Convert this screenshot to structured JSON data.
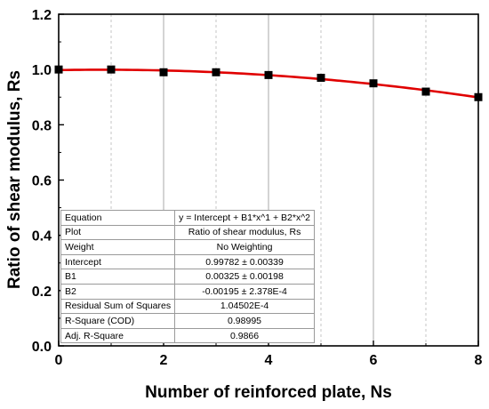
{
  "chart_data": {
    "type": "scatter",
    "title": "",
    "xlabel": "Number of reinforced plate, Ns",
    "ylabel": "Ratio of shear modulus, Rs",
    "xlim": [
      0,
      8
    ],
    "ylim": [
      0,
      1.2
    ],
    "x_ticks": [
      "0",
      "2",
      "4",
      "6",
      "8"
    ],
    "y_ticks": [
      "0.0",
      "0.2",
      "0.4",
      "0.6",
      "0.8",
      "1.0",
      "1.2"
    ],
    "grid": "vertical",
    "series": [
      {
        "x": [
          0,
          1,
          2,
          3,
          4,
          5,
          6,
          7,
          8
        ],
        "y": [
          1.0,
          1.0,
          0.99,
          0.99,
          0.98,
          0.97,
          0.95,
          0.92,
          0.9
        ],
        "marker": "square",
        "color": "#000000"
      }
    ],
    "fit": {
      "type": "polynomial",
      "color": "#e00000",
      "coefficients": [
        0.99782,
        0.00325,
        -0.00195
      ]
    },
    "fit_table": {
      "rows": [
        {
          "label": "Equation",
          "value": "y = Intercept + B1*x^1 + B2*x^2"
        },
        {
          "label": "Plot",
          "value": "Ratio of shear modulus, Rs"
        },
        {
          "label": "Weight",
          "value": "No Weighting"
        },
        {
          "label": "Intercept",
          "value": "0.99782 ± 0.00339"
        },
        {
          "label": "B1",
          "value": "0.00325 ± 0.00198"
        },
        {
          "label": "B2",
          "value": "-0.00195 ± 2.378E-4"
        },
        {
          "label": "Residual Sum of Squares",
          "value": "1.04502E-4"
        },
        {
          "label": "R-Square (COD)",
          "value": "0.98995"
        },
        {
          "label": "Adj. R-Square",
          "value": "0.9866"
        }
      ]
    }
  }
}
